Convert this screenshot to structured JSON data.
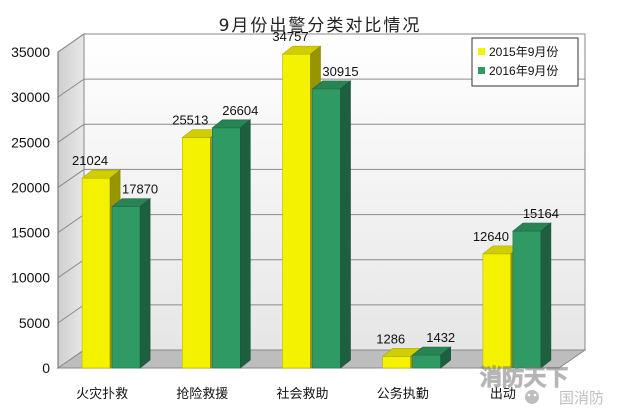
{
  "chart_data": {
    "type": "bar",
    "title": "9月份出警分类对比情况",
    "categories": [
      "火灾扑救",
      "抢险救援",
      "社会救助",
      "公务执勤",
      "出动"
    ],
    "series": [
      {
        "name": "2015年9月份",
        "values": [
          21024,
          25513,
          34757,
          1286,
          12640
        ],
        "color": "#f5f200"
      },
      {
        "name": "2016年9月份",
        "values": [
          17870,
          26604,
          30915,
          1432,
          15164
        ],
        "color": "#2f9a64"
      }
    ],
    "y_ticks": [
      0,
      5000,
      10000,
      15000,
      20000,
      25000,
      30000,
      35000
    ],
    "ylim": [
      0,
      35000
    ],
    "grid": true,
    "legend_position": "top-right",
    "style": "3d-column"
  },
  "watermark": {
    "line1": "消防天下",
    "line2": "国消防"
  }
}
